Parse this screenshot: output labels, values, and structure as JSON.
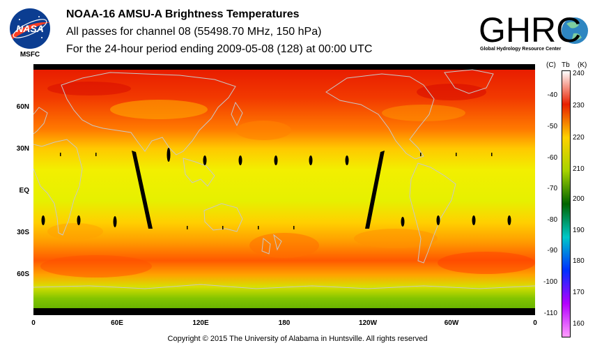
{
  "header": {
    "title": "NOAA-16 AMSU-A Brightness Temperatures",
    "subtitle": "All passes for channel 08 (55498.70 MHz, 150 hPa)",
    "period": "For the 24-hour period ending 2009-05-08 (128) at 00:00 UTC"
  },
  "logos": {
    "nasa_text": "NASA",
    "nasa_caption": "MSFC",
    "ghrc_text": "GHRC",
    "ghrc_caption": "Global Hydrology Resource Center"
  },
  "map": {
    "lat_labels": [
      "60N",
      "30N",
      "EQ",
      "30S",
      "60S"
    ],
    "lon_labels": [
      "0",
      "60E",
      "120E",
      "180",
      "120W",
      "60W",
      "0"
    ]
  },
  "colorbar": {
    "header_c": "(C)",
    "header_tb": "Tb",
    "header_k": "(K)",
    "celsius_ticks": [
      "-40",
      "-50",
      "-60",
      "-70",
      "-80",
      "-90",
      "-100",
      "-110"
    ],
    "kelvin_ticks": [
      "240",
      "230",
      "220",
      "210",
      "200",
      "190",
      "180",
      "170",
      "160"
    ],
    "colors": {
      "k240": "#ffffff",
      "k230": "#e82000",
      "k220": "#ffd200",
      "k210": "#a7d300",
      "k200": "#006400",
      "k190": "#00c8c8",
      "k180": "#0030ff",
      "k170": "#b400ff",
      "k160": "#ff9cff"
    }
  },
  "footer": {
    "copyright": "Copyright © 2015 The University of Alabama in Huntsville.  All rights reserved"
  }
}
